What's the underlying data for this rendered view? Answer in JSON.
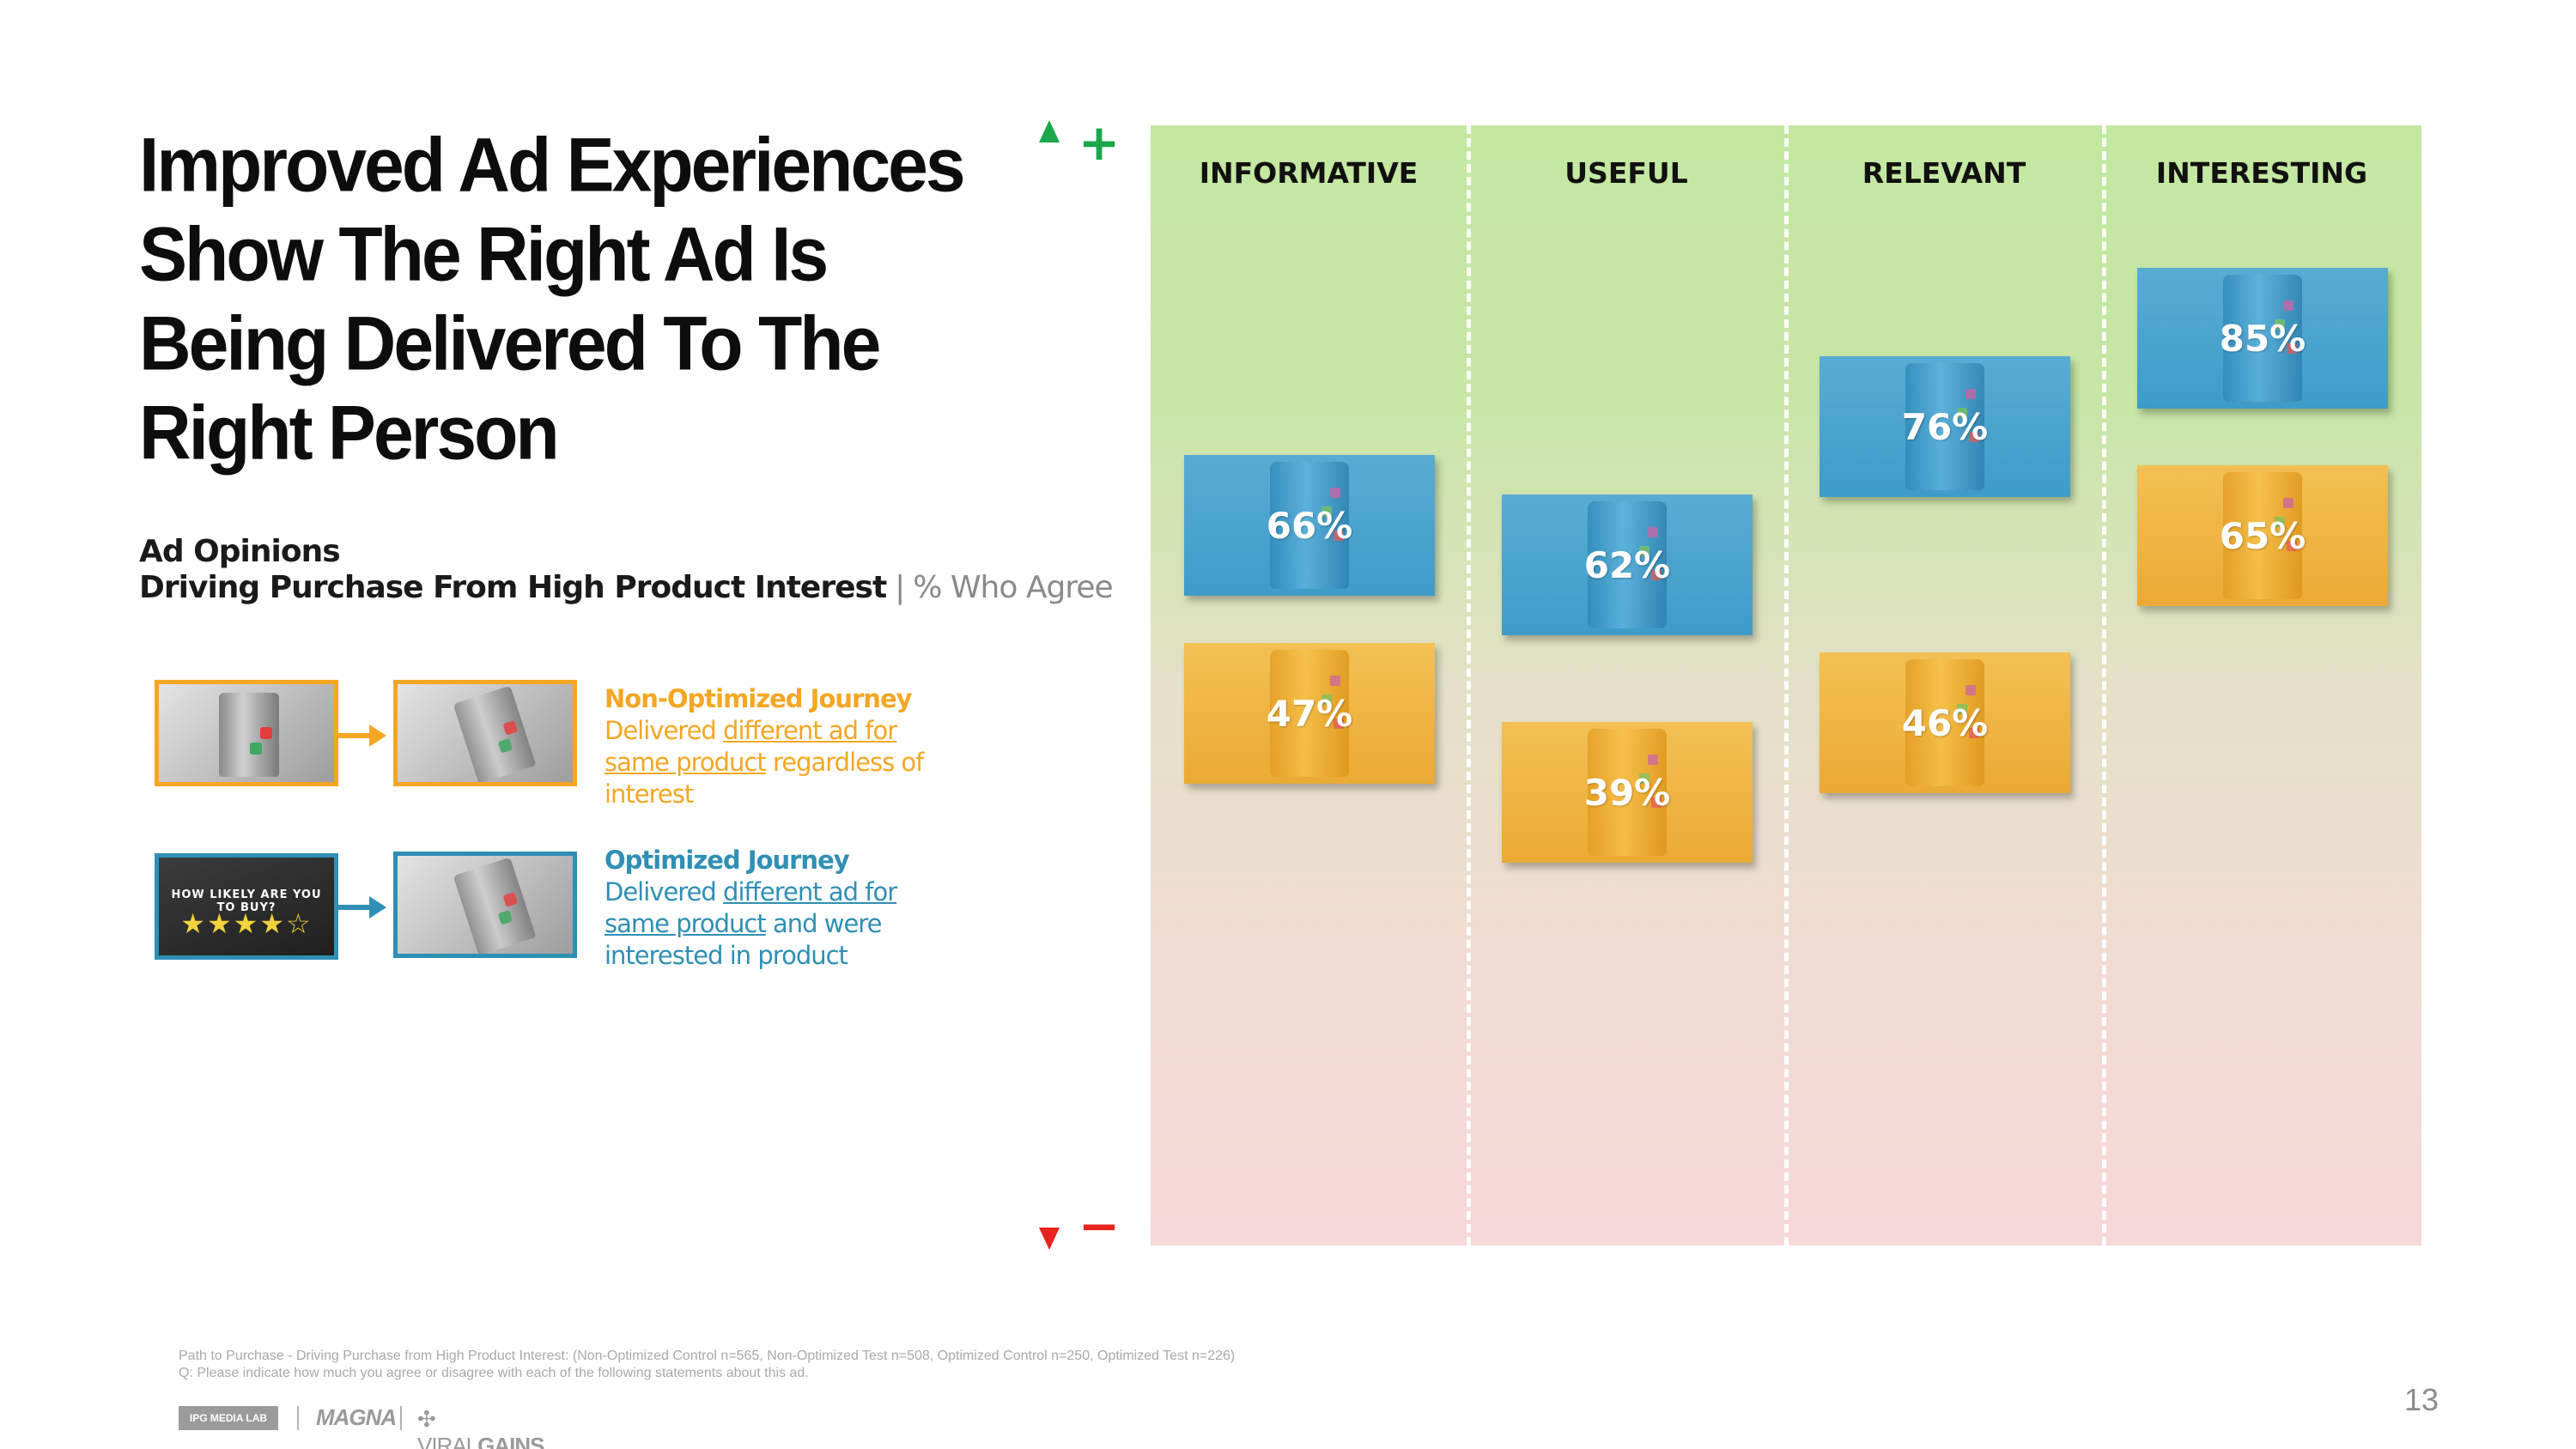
{
  "title": "Improved Ad Experiences Show The Right Ad Is Being Delivered To The Right Person",
  "subtitle": {
    "line1": "Ad Opinions",
    "line2_main": "Driving Purchase From High Product Interest",
    "separator": "|",
    "line2_light": "% Who Agree"
  },
  "legend": {
    "non_optimized": {
      "title": "Non-Optimized Journey",
      "desc_pre": "Delivered ",
      "desc_underlined": "different ad for same product",
      "desc_post": " regardless of interest",
      "color": "#f5a623"
    },
    "optimized": {
      "title": "Optimized Journey",
      "desc_pre": "Delivered ",
      "desc_underlined": "different ad for same product",
      "desc_post": " and were interested in product",
      "color": "#2f8fb5",
      "rating_question": "HOW LIKELY ARE YOU TO BUY?",
      "rating_stars": "★★★★☆"
    }
  },
  "axis": {
    "plus": "+",
    "minus": "−",
    "plus_color": "#1aa64a",
    "minus_color": "#e8231e"
  },
  "chart_data": {
    "type": "scatter",
    "title": "Ad Opinions — Driving Purchase From High Product Interest",
    "ylabel": "% Who Agree",
    "ylim": [
      0,
      100
    ],
    "categories": [
      "INFORMATIVE",
      "USEFUL",
      "RELEVANT",
      "INTERESTING"
    ],
    "series": [
      {
        "name": "Optimized Journey",
        "color": "#3e9cc8",
        "values": [
          66,
          62,
          76,
          85
        ],
        "labels": [
          "66%",
          "62%",
          "76%",
          "85%"
        ]
      },
      {
        "name": "Non-Optimized Journey",
        "color": "#ebaa34",
        "values": [
          47,
          39,
          46,
          65
        ],
        "labels": [
          "47%",
          "39%",
          "46%",
          "65%"
        ]
      }
    ]
  },
  "footnote": {
    "line1": "Path to Purchase - Driving Purchase from High Product Interest: (Non-Optimized Control n=565, Non-Optimized Test n=508, Optimized Control n=250, Optimized Test n=226)",
    "line2": "Q: Please indicate how much you agree or disagree with each of the following statements about this ad."
  },
  "logos": {
    "ipg": "IPG MEDIA LAB",
    "magna": "MAGNA",
    "viral_light": "VIRAL",
    "viral_bold": "GAINS"
  },
  "page_number": "13"
}
